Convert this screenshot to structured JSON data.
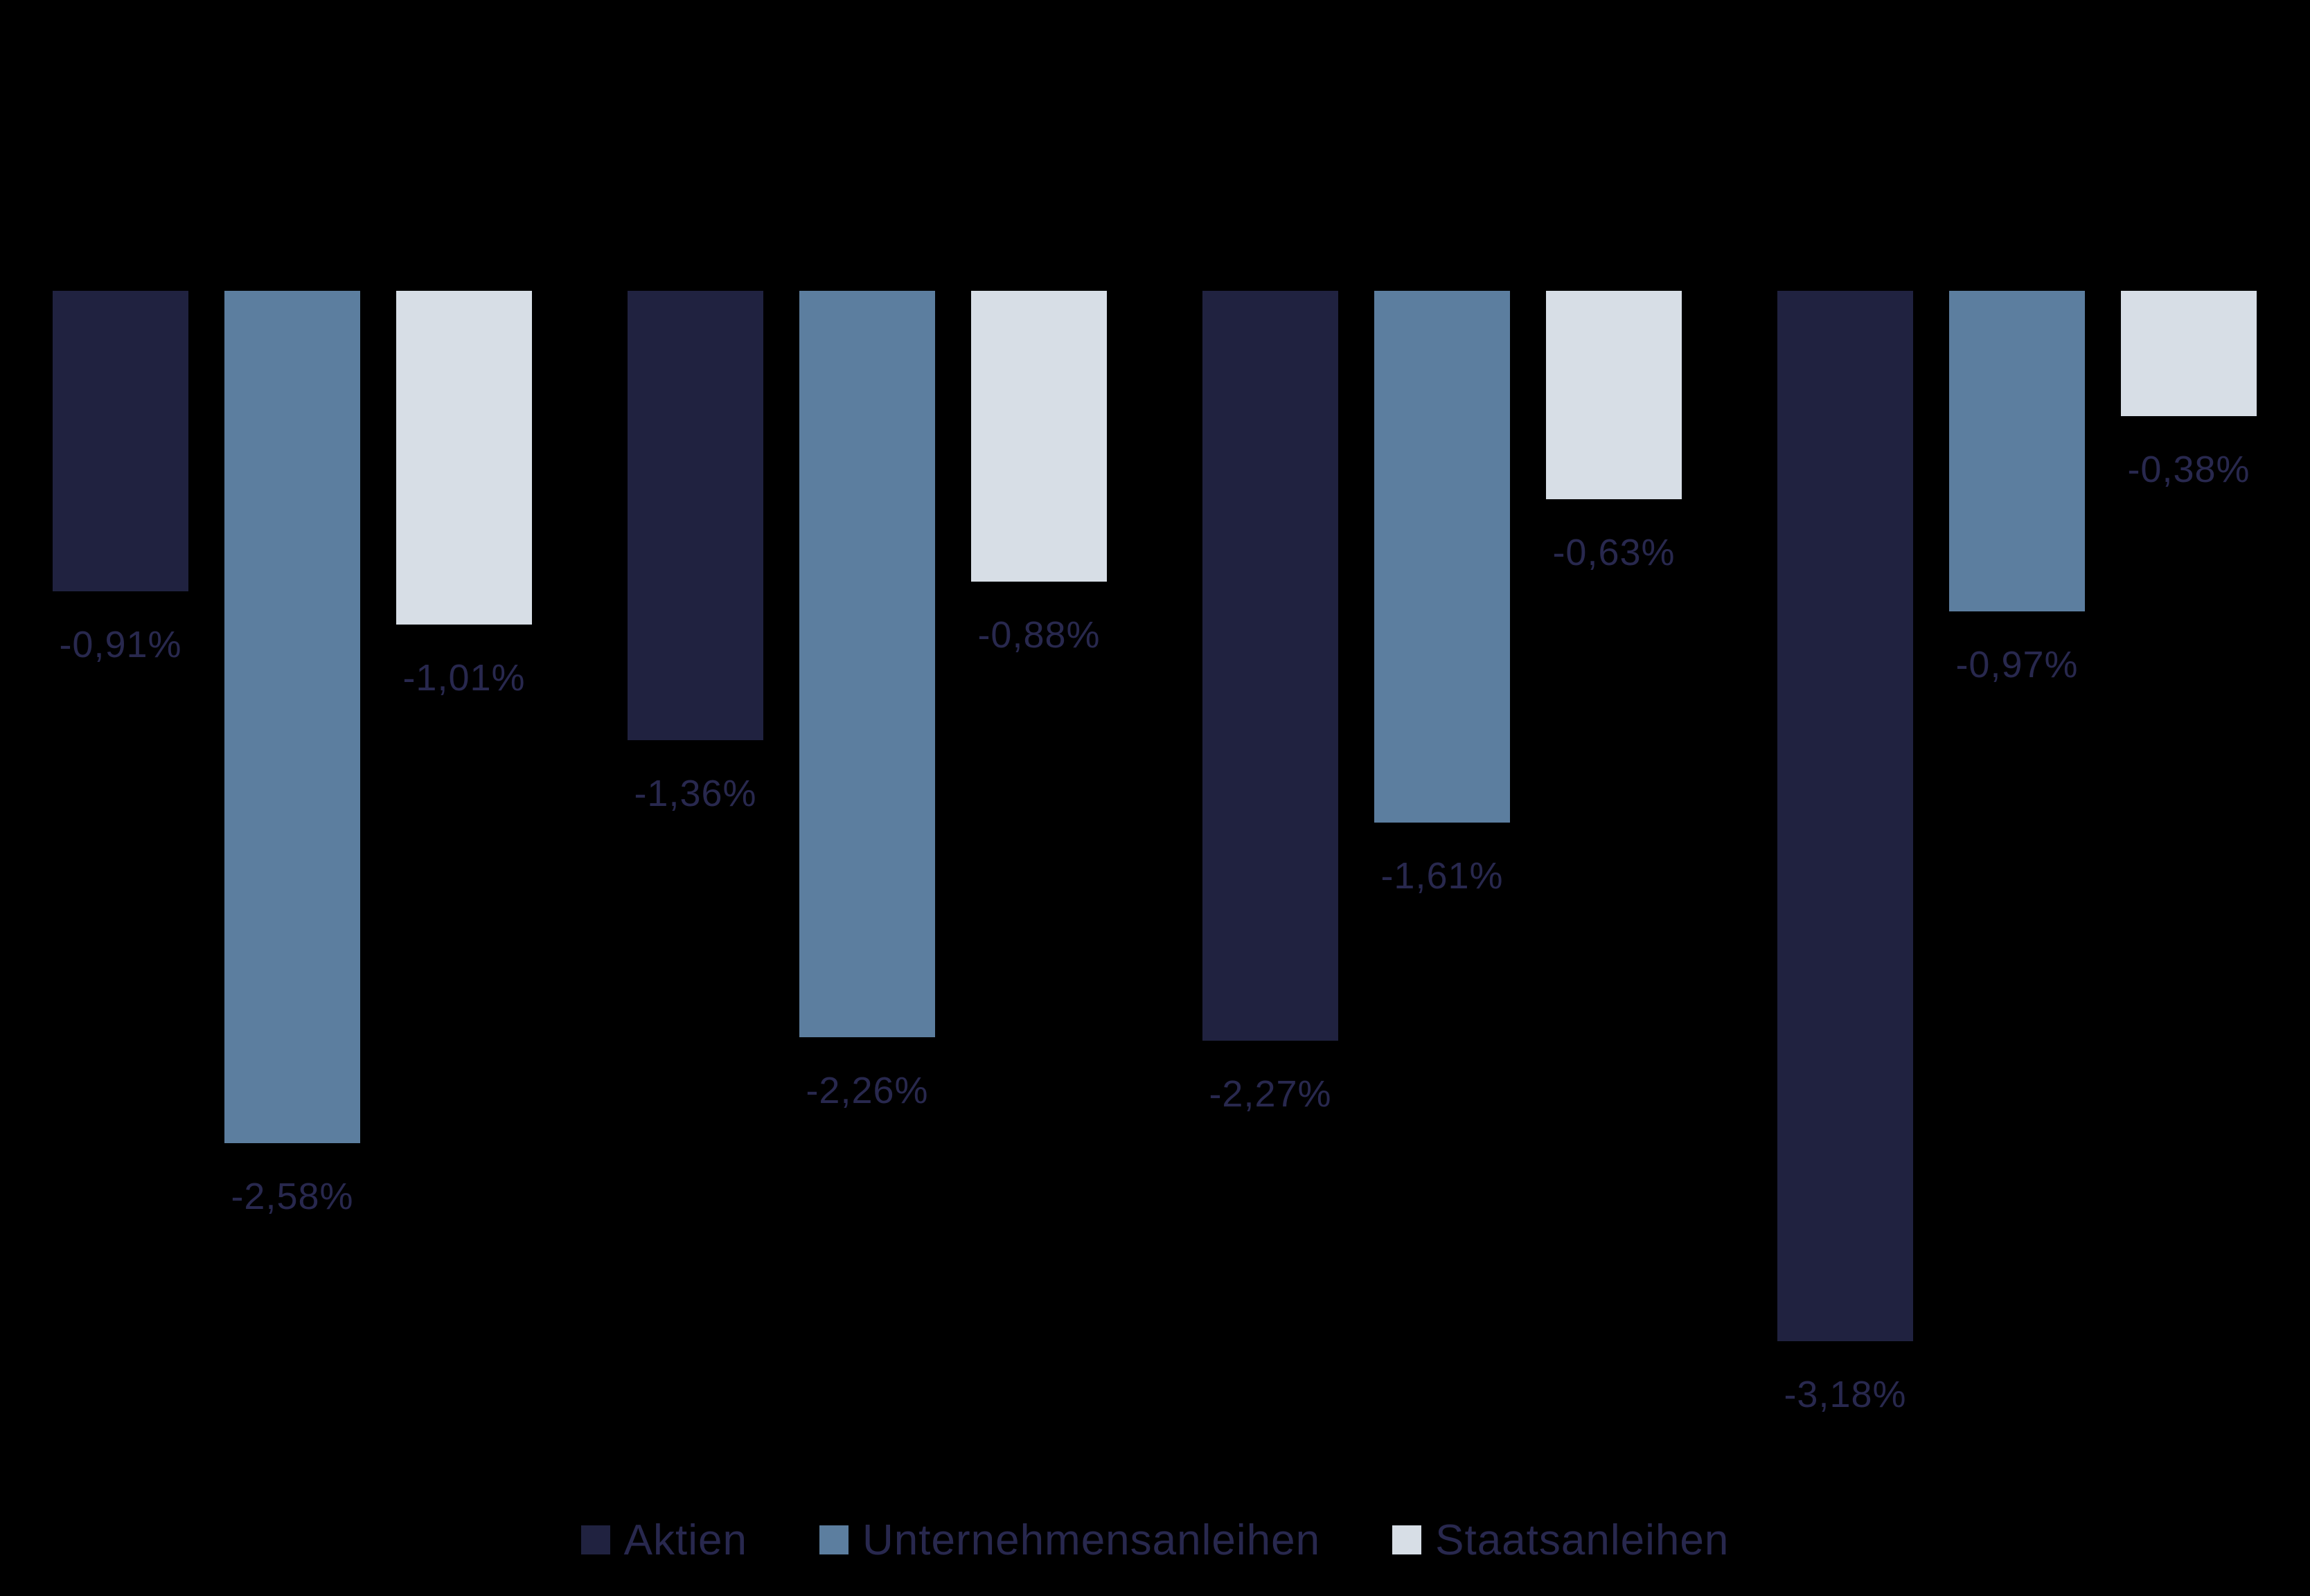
{
  "chart_data": {
    "type": "bar",
    "orientation": "vertical",
    "title": "",
    "xlabel": "",
    "ylabel": "",
    "unit": "%",
    "grid": false,
    "axes_visible": false,
    "legend_position": "bottom",
    "background_color": "#000000",
    "data_label_color": "#28284E",
    "ylim": [
      -3.5,
      0
    ],
    "group_count": 4,
    "categories": [
      "",
      "",
      "",
      ""
    ],
    "series": [
      {
        "name": "Aktien",
        "color": "#202240",
        "values": [
          -0.91,
          -1.36,
          -2.27,
          -3.18
        ],
        "labels": [
          "-0,91%",
          "-1,36%",
          "-2,27%",
          "-3,18%"
        ]
      },
      {
        "name": "Unternehmensanleihen",
        "color": "#5C7E9F",
        "values": [
          -2.58,
          -2.26,
          -1.61,
          -0.97
        ],
        "labels": [
          "-2,58%",
          "-2,26%",
          "-1,61%",
          "-0,97%"
        ]
      },
      {
        "name": "Staatsanleihen",
        "color": "#D7DEE6",
        "values": [
          -1.01,
          -0.88,
          -0.63,
          -0.38
        ],
        "labels": [
          "-1,01%",
          "-0,88%",
          "-0,63%",
          "-0,38%"
        ]
      }
    ]
  }
}
